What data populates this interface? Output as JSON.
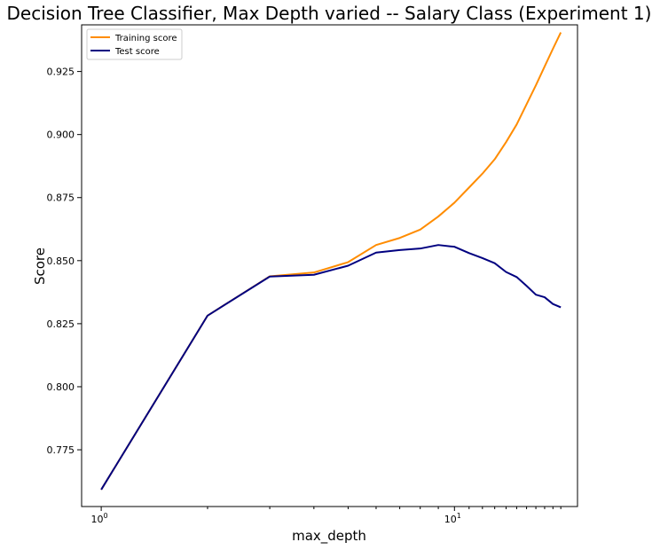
{
  "chart_data": {
    "type": "line",
    "title": "Decision Tree Classifier, Max Depth varied -- Salary Class (Experiment 1)",
    "xlabel": "max_depth",
    "ylabel": "Score",
    "x_scale": "log",
    "xlim": [
      0.88,
      22.3
    ],
    "ylim": [
      0.7525,
      0.9435
    ],
    "x_ticks": [
      {
        "value": 1,
        "base": "10",
        "exp": "0"
      },
      {
        "value": 10,
        "base": "10",
        "exp": "1"
      }
    ],
    "y_ticks": [
      {
        "value": 0.775,
        "label": "0.775"
      },
      {
        "value": 0.8,
        "label": "0.800"
      },
      {
        "value": 0.825,
        "label": "0.825"
      },
      {
        "value": 0.85,
        "label": "0.850"
      },
      {
        "value": 0.875,
        "label": "0.875"
      },
      {
        "value": 0.9,
        "label": "0.900"
      },
      {
        "value": 0.925,
        "label": "0.925"
      }
    ],
    "grid": false,
    "legend_position": "top-left",
    "x": [
      1,
      2,
      3,
      4,
      5,
      6,
      7,
      8,
      9,
      10,
      11,
      12,
      13,
      14,
      15,
      16,
      17,
      18,
      19,
      20
    ],
    "series": [
      {
        "name": "Training score",
        "color": "#ff8c00",
        "values": [
          0.7592,
          0.8282,
          0.8438,
          0.8453,
          0.8494,
          0.8562,
          0.859,
          0.8623,
          0.8675,
          0.873,
          0.879,
          0.8845,
          0.8902,
          0.897,
          0.904,
          0.912,
          0.9195,
          0.927,
          0.934,
          0.9405
        ]
      },
      {
        "name": "Test score",
        "color": "#000080",
        "values": [
          0.7592,
          0.8282,
          0.8437,
          0.8444,
          0.848,
          0.8532,
          0.8542,
          0.8548,
          0.8562,
          0.8555,
          0.853,
          0.851,
          0.849,
          0.8455,
          0.8435,
          0.84,
          0.8365,
          0.8355,
          0.8328,
          0.8315
        ]
      }
    ]
  }
}
